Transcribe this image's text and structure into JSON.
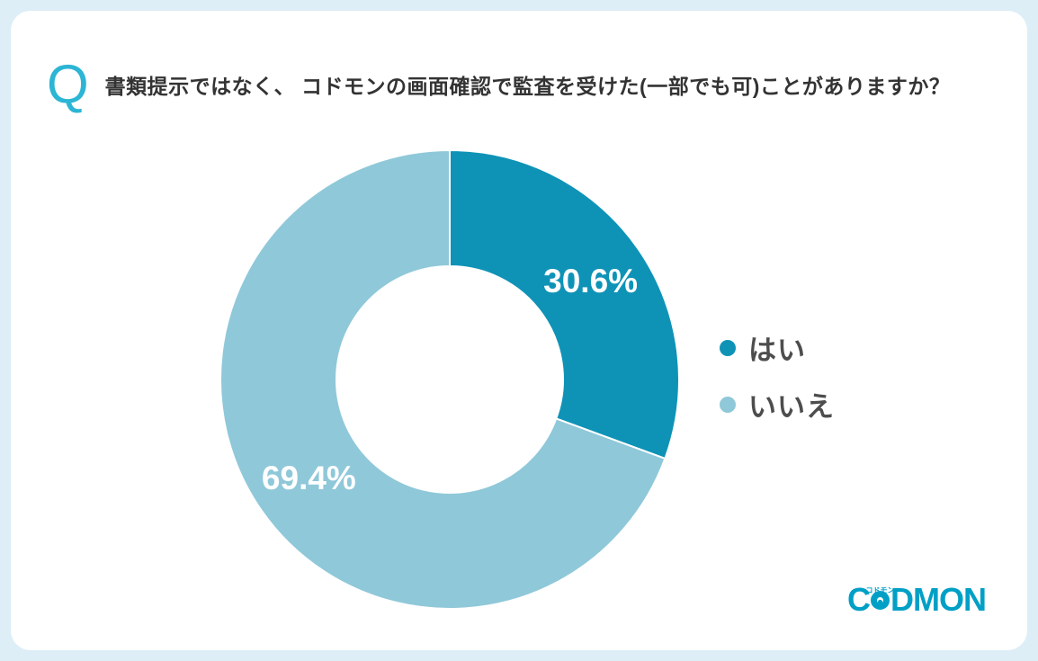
{
  "theme": {
    "frame_bg": "#ddeef7",
    "card_bg": "#ffffff",
    "accent": "#2cb5d4",
    "text": "#333333",
    "legend_text": "#4d4d4d",
    "logo_color": "#00a0c6"
  },
  "header": {
    "q_mark": "Q",
    "question": "書類提示ではなく、 コドモンの画面確認で監査を受けた(一部でも可)ことがありますか？"
  },
  "chart_data": {
    "type": "pie",
    "donut": true,
    "start_angle_deg": -90,
    "direction": "clockwise",
    "categories": [
      "はい",
      "いいえ"
    ],
    "values": [
      30.6,
      69.4
    ],
    "unit": "%",
    "labels": [
      "30.6%",
      "69.4%"
    ],
    "colors": [
      "#0e93b7",
      "#8fc8d9"
    ],
    "title": "",
    "legend_position": "right",
    "label_color": "#ffffff"
  },
  "logo": {
    "text_before_face": "C",
    "text_after_face": "DMON",
    "small_text": "コドモン"
  }
}
